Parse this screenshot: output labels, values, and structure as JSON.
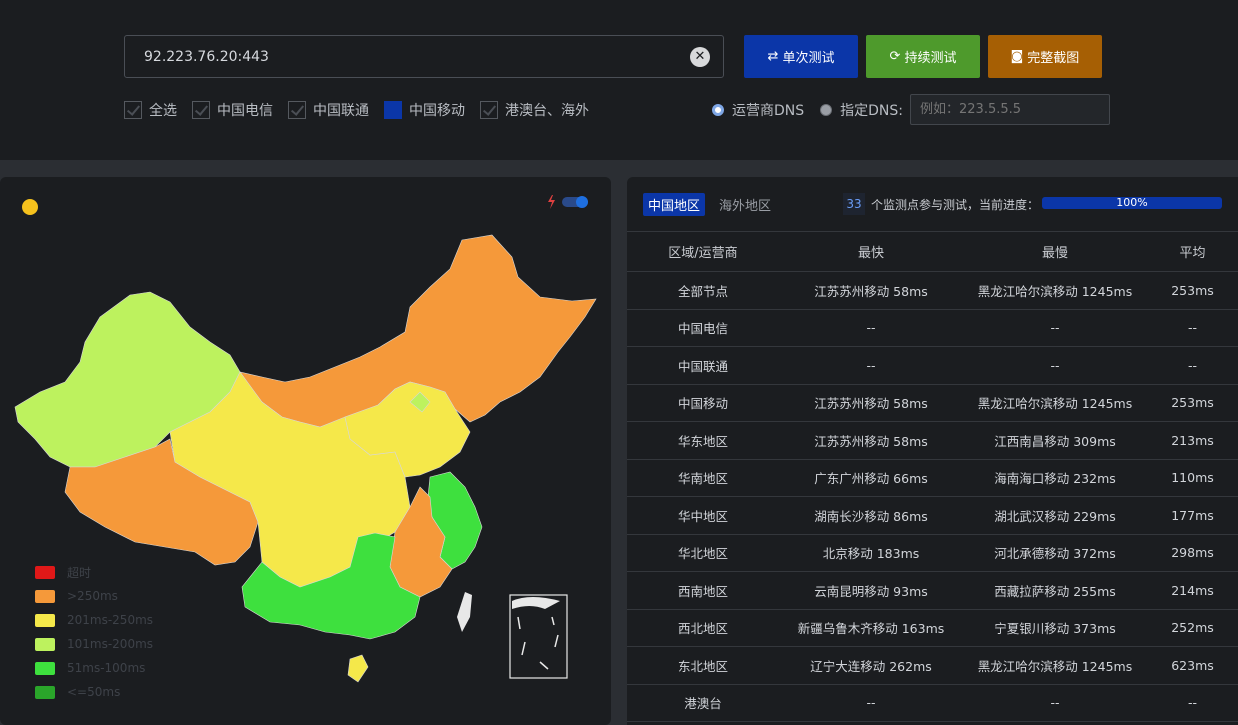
{
  "colors": {
    "timeout": "#e01818",
    "over250": "#f5993a",
    "r201_250": "#f5e84a",
    "r101_200": "#bdf25e",
    "r51_100": "#3ee03e",
    "le50": "#2aa52a",
    "accent_blue": "#0b36a8",
    "accent_green": "#4e9a2c",
    "accent_orange": "#a65f04"
  },
  "top": {
    "url_value": "92.223.76.20:443",
    "buttons": {
      "single": "单次测试",
      "continuous": "持续测试",
      "screenshot": "完整截图"
    },
    "checkboxes": [
      {
        "label": "全选",
        "state": "checked"
      },
      {
        "label": "中国电信",
        "state": "checked"
      },
      {
        "label": "中国联通",
        "state": "checked"
      },
      {
        "label": "中国移动",
        "state": "active"
      },
      {
        "label": "港澳台、海外",
        "state": "checked"
      }
    ],
    "dns": {
      "carrier_label": "运营商DNS",
      "custom_label": "指定DNS:",
      "custom_placeholder": "例如：223.5.5.5"
    }
  },
  "map": {
    "legend": [
      {
        "label": "超时",
        "color": "#e01818"
      },
      {
        "label": ">250ms",
        "color": "#f5993a"
      },
      {
        "label": "201ms-250ms",
        "color": "#f5e84a"
      },
      {
        "label": "101ms-200ms",
        "color": "#bdf25e"
      },
      {
        "label": "51ms-100ms",
        "color": "#3ee03e"
      },
      {
        "label": "<=50ms",
        "color": "#2aa52a"
      }
    ]
  },
  "results": {
    "tab_active": "中国地区",
    "tab_other": "海外地区",
    "node_count": "33",
    "progress_text": "个监测点参与测试，当前进度：",
    "progress_value": "100%",
    "progress_fraction": 1.0,
    "headers": {
      "region": "区域/运营商",
      "fastest": "最快",
      "slowest": "最慢",
      "average": "平均"
    },
    "rows": [
      {
        "region": "全部节点",
        "fastest": "江苏苏州移动 58ms",
        "slowest": "黑龙江哈尔滨移动 1245ms",
        "average": "253ms"
      },
      {
        "region": "中国电信",
        "fastest": "--",
        "slowest": "--",
        "average": "--"
      },
      {
        "region": "中国联通",
        "fastest": "--",
        "slowest": "--",
        "average": "--"
      },
      {
        "region": "中国移动",
        "fastest": "江苏苏州移动 58ms",
        "slowest": "黑龙江哈尔滨移动 1245ms",
        "average": "253ms"
      },
      {
        "region": "华东地区",
        "fastest": "江苏苏州移动 58ms",
        "slowest": "江西南昌移动 309ms",
        "average": "213ms"
      },
      {
        "region": "华南地区",
        "fastest": "广东广州移动 66ms",
        "slowest": "海南海口移动 232ms",
        "average": "110ms"
      },
      {
        "region": "华中地区",
        "fastest": "湖南长沙移动 86ms",
        "slowest": "湖北武汉移动 229ms",
        "average": "177ms"
      },
      {
        "region": "华北地区",
        "fastest": "北京移动 183ms",
        "slowest": "河北承德移动 372ms",
        "average": "298ms"
      },
      {
        "region": "西南地区",
        "fastest": "云南昆明移动 93ms",
        "slowest": "西藏拉萨移动 255ms",
        "average": "214ms"
      },
      {
        "region": "西北地区",
        "fastest": "新疆乌鲁木齐移动 163ms",
        "slowest": "宁夏银川移动 373ms",
        "average": "252ms"
      },
      {
        "region": "东北地区",
        "fastest": "辽宁大连移动 262ms",
        "slowest": "黑龙江哈尔滨移动 1245ms",
        "average": "623ms"
      },
      {
        "region": "港澳台",
        "fastest": "--",
        "slowest": "--",
        "average": "--"
      }
    ]
  }
}
